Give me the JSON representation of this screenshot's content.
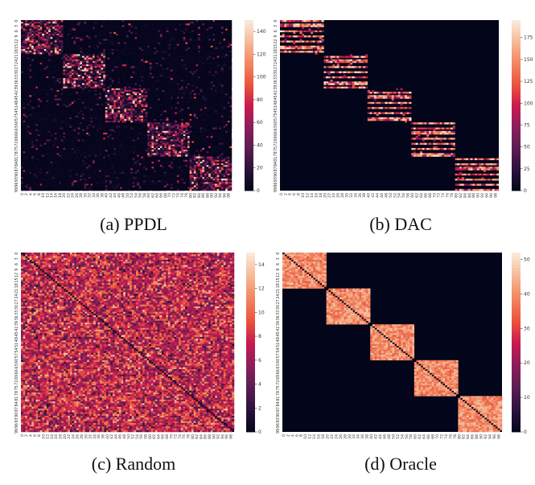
{
  "chart_data": [
    {
      "type": "heatmap",
      "caption": "(a) PPDL",
      "n": 100,
      "x_ticks": [
        "0",
        "2",
        "4",
        "6",
        "8",
        "10",
        "12",
        "14",
        "16",
        "18",
        "20",
        "22",
        "24",
        "26",
        "28",
        "30",
        "32",
        "34",
        "36",
        "38",
        "40",
        "42",
        "44",
        "46",
        "48",
        "50",
        "52",
        "54",
        "56",
        "58",
        "60",
        "62",
        "64",
        "66",
        "68",
        "70",
        "72",
        "74",
        "76",
        "78",
        "80",
        "82",
        "84",
        "86",
        "88",
        "90",
        "92",
        "94",
        "96",
        "98"
      ],
      "y_ticks": [
        "0",
        "3",
        "6",
        "9",
        "12",
        "15",
        "18",
        "21",
        "24",
        "27",
        "30",
        "33",
        "36",
        "39",
        "42",
        "45",
        "48",
        "51",
        "54",
        "57",
        "60",
        "63",
        "66",
        "69",
        "72",
        "75",
        "78",
        "81",
        "84",
        "87",
        "90",
        "93",
        "96",
        "99"
      ],
      "colorbar_ticks": [
        0,
        20,
        40,
        60,
        80,
        100,
        120,
        140
      ],
      "vmax": 150,
      "block_size": 20,
      "pattern": "diagonal blocks (5 groups of 20) with scattered sparse high values; sparse off-block speckle",
      "colormap": "rocket"
    },
    {
      "type": "heatmap",
      "caption": "(b) DAC",
      "n": 100,
      "x_ticks": [
        "0",
        "2",
        "4",
        "6",
        "8",
        "10",
        "12",
        "14",
        "16",
        "18",
        "20",
        "22",
        "24",
        "26",
        "28",
        "30",
        "32",
        "34",
        "36",
        "38",
        "40",
        "42",
        "44",
        "46",
        "48",
        "50",
        "52",
        "54",
        "56",
        "58",
        "60",
        "62",
        "64",
        "66",
        "68",
        "70",
        "72",
        "74",
        "76",
        "78",
        "80",
        "82",
        "84",
        "86",
        "88",
        "90",
        "92",
        "94",
        "96",
        "98"
      ],
      "y_ticks": [
        "0",
        "3",
        "6",
        "9",
        "12",
        "15",
        "18",
        "21",
        "24",
        "27",
        "30",
        "33",
        "36",
        "39",
        "42",
        "45",
        "48",
        "51",
        "54",
        "57",
        "60",
        "63",
        "66",
        "69",
        "72",
        "75",
        "78",
        "81",
        "84",
        "87",
        "90",
        "93",
        "96",
        "99"
      ],
      "colorbar_ticks": [
        0,
        25,
        50,
        75,
        100,
        125,
        150,
        175
      ],
      "vmax": 195,
      "block_size": 20,
      "pattern": "diagonal blocks with horizontal striped rows of high values; zero elsewhere",
      "colormap": "rocket"
    },
    {
      "type": "heatmap",
      "caption": "(c) Random",
      "n": 100,
      "x_ticks": [
        "0",
        "2",
        "4",
        "6",
        "8",
        "10",
        "12",
        "14",
        "16",
        "18",
        "20",
        "22",
        "24",
        "26",
        "28",
        "30",
        "32",
        "34",
        "36",
        "38",
        "40",
        "42",
        "44",
        "46",
        "48",
        "50",
        "52",
        "54",
        "56",
        "58",
        "60",
        "62",
        "64",
        "66",
        "68",
        "70",
        "72",
        "74",
        "76",
        "78",
        "80",
        "82",
        "84",
        "86",
        "88",
        "90",
        "92",
        "94",
        "96",
        "98"
      ],
      "y_ticks": [
        "0",
        "3",
        "6",
        "9",
        "12",
        "15",
        "18",
        "21",
        "24",
        "27",
        "30",
        "33",
        "36",
        "39",
        "42",
        "45",
        "48",
        "51",
        "54",
        "57",
        "60",
        "63",
        "66",
        "69",
        "72",
        "75",
        "78",
        "81",
        "84",
        "87",
        "90",
        "93",
        "96",
        "99"
      ],
      "colorbar_ticks": [
        0,
        2,
        4,
        6,
        8,
        10,
        12,
        14
      ],
      "vmax": 15,
      "pattern": "uniform random values around 6-10 everywhere; zero diagonal",
      "colormap": "rocket"
    },
    {
      "type": "heatmap",
      "caption": "(d) Oracle",
      "n": 100,
      "x_ticks": [
        "0",
        "2",
        "4",
        "6",
        "8",
        "10",
        "12",
        "14",
        "16",
        "18",
        "20",
        "22",
        "24",
        "26",
        "28",
        "30",
        "32",
        "34",
        "36",
        "38",
        "40",
        "42",
        "44",
        "46",
        "48",
        "50",
        "52",
        "54",
        "56",
        "58",
        "60",
        "62",
        "64",
        "66",
        "68",
        "70",
        "72",
        "74",
        "76",
        "78",
        "80",
        "82",
        "84",
        "86",
        "88",
        "90",
        "92",
        "94",
        "96",
        "98"
      ],
      "y_ticks": [
        "0",
        "3",
        "6",
        "9",
        "12",
        "15",
        "18",
        "21",
        "24",
        "27",
        "30",
        "33",
        "36",
        "39",
        "42",
        "45",
        "48",
        "51",
        "54",
        "57",
        "60",
        "63",
        "66",
        "69",
        "72",
        "75",
        "78",
        "81",
        "84",
        "87",
        "90",
        "93",
        "96",
        "99"
      ],
      "colorbar_ticks": [
        0,
        10,
        20,
        30,
        40,
        50
      ],
      "vmax": 52,
      "block_size": 20,
      "pattern": "five dense diagonal blocks with values ~35-45; zero diagonal; zero off-block",
      "colormap": "rocket"
    }
  ]
}
